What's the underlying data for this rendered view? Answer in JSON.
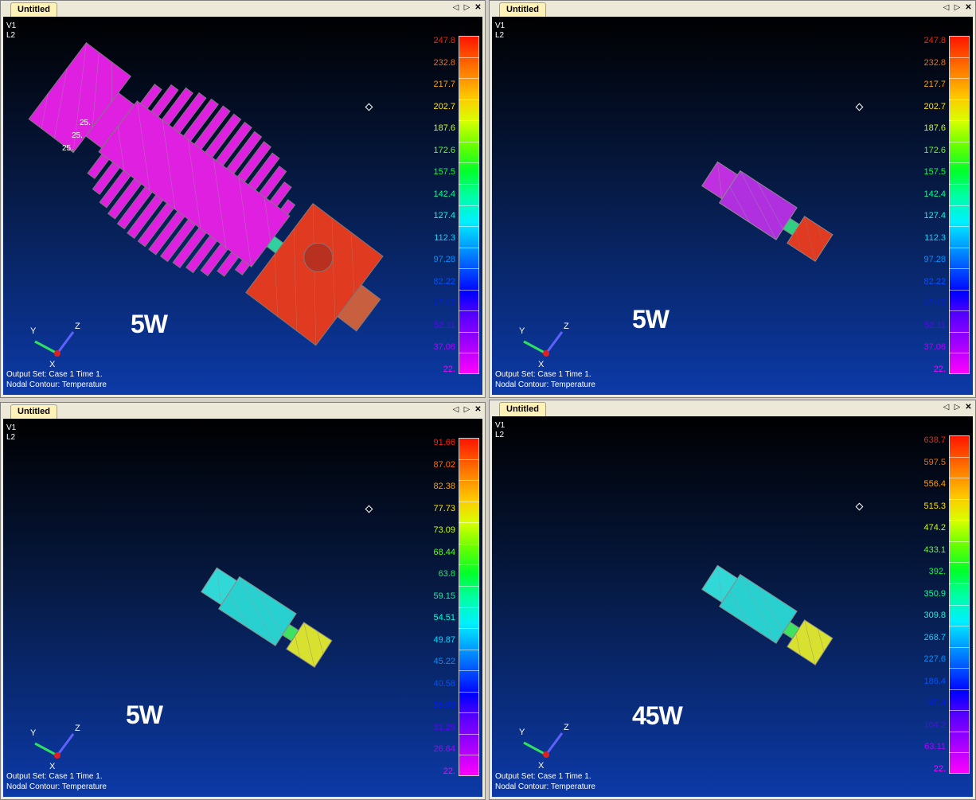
{
  "legend_colors": [
    "#ff2000",
    "#ff6a00",
    "#ffa000",
    "#ffe000",
    "#c8ff00",
    "#60ff20",
    "#00ff40",
    "#00ff90",
    "#00ffd8",
    "#00d8ff",
    "#0090ff",
    "#0050ff",
    "#0018ff",
    "#6000ff",
    "#b000ff",
    "#ff00ff"
  ],
  "panes": [
    {
      "tab": "Untitled",
      "v": "V1",
      "l": "L2",
      "power": "5W",
      "legend": [
        "247.8",
        "232.8",
        "217.7",
        "202.7",
        "187.6",
        "172.6",
        "157.5",
        "142.4",
        "127.4",
        "112.3",
        "97.28",
        "82.22",
        "67.17",
        "52.11",
        "37.06",
        "22."
      ],
      "output_set": "Output Set: Case 1 Time 1.",
      "contour": "Nodal Contour: Temperature",
      "axes": {
        "y": "Y",
        "z": "Z",
        "x": "X"
      },
      "markers": [
        "25.",
        "25.",
        "25."
      ]
    },
    {
      "tab": "Untitled",
      "v": "V1",
      "l": "L2",
      "power": "5W",
      "legend": [
        "247.8",
        "232.8",
        "217.7",
        "202.7",
        "187.6",
        "172.6",
        "157.5",
        "142.4",
        "127.4",
        "112.3",
        "97.28",
        "82.22",
        "67.17",
        "52.11",
        "37.06",
        "22."
      ],
      "output_set": "Output Set: Case 1 Time 1.",
      "contour": "Nodal Contour: Temperature",
      "axes": {
        "y": "Y",
        "z": "Z",
        "x": "X"
      }
    },
    {
      "tab": "Untitled",
      "v": "V1",
      "l": "L2",
      "power": "5W",
      "legend": [
        "91.66",
        "87.02",
        "82.38",
        "77.73",
        "73.09",
        "68.44",
        "63.8",
        "59.15",
        "54.51",
        "49.87",
        "45.22",
        "40.58",
        "35.93",
        "31.29",
        "26.64",
        "22."
      ],
      "output_set": "Output Set: Case 1 Time 1.",
      "contour": "Nodal Contour: Temperature",
      "axes": {
        "y": "Y",
        "z": "Z",
        "x": "X"
      }
    },
    {
      "tab": "Untitled",
      "v": "V1",
      "l": "L2",
      "power": "45W",
      "legend": [
        "638.7",
        "597.5",
        "556.4",
        "515.3",
        "474.2",
        "433.1",
        "392.",
        "350.9",
        "309.8",
        "268.7",
        "227.6",
        "186.4",
        "145.3",
        "104.2",
        "63.11",
        "22."
      ],
      "output_set": "Output Set: Case 1 Time 1.",
      "contour": "Nodal Contour: Temperature",
      "axes": {
        "y": "Y",
        "z": "Z",
        "x": "X"
      }
    }
  ]
}
